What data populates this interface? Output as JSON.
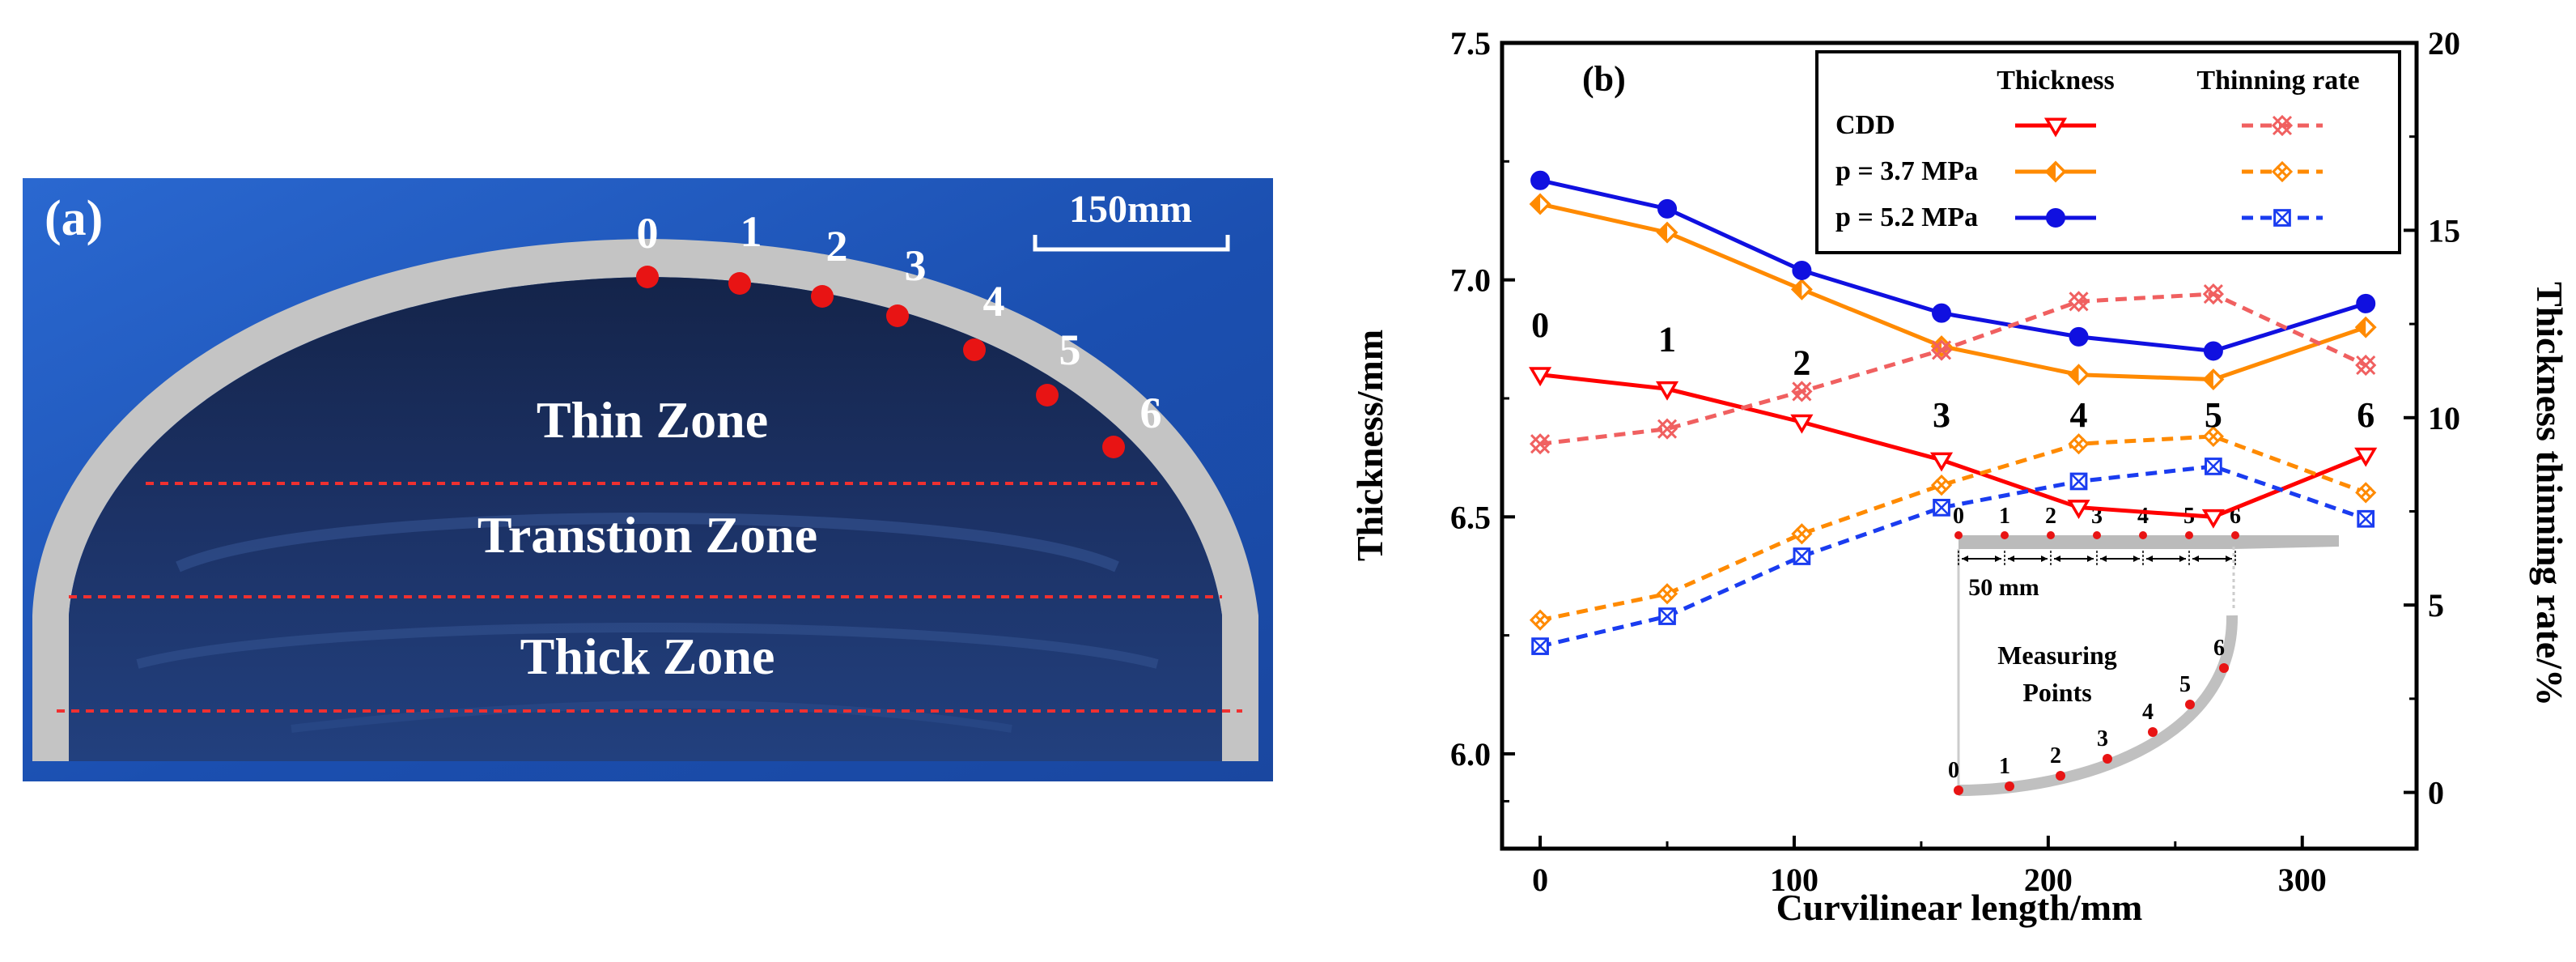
{
  "panel_a": {
    "label": "(a)",
    "scale_bar": "150mm",
    "zones": [
      "Thin Zone",
      "Transtion Zone",
      "Thick Zone"
    ],
    "point_labels": [
      "0",
      "1",
      "2",
      "3",
      "4",
      "5",
      "6"
    ],
    "colors": {
      "background": "#1f55b8",
      "shell": "#c7c7c7",
      "marker": "#e81414",
      "dash": "#f03030"
    }
  },
  "chart_data": {
    "type": "line",
    "panel_label": "(b)",
    "xlabel": "Curvilinear length/mm",
    "ylabel": "Thickness/mm",
    "y2label": "Thickness thinning rate/%",
    "xlim": [
      -15,
      345
    ],
    "ylim": [
      5.8,
      7.5
    ],
    "y2lim": [
      -1.5,
      20
    ],
    "xticks": [
      "0",
      "100",
      "200",
      "300"
    ],
    "yticks": [
      "6.0",
      "6.5",
      "7.0",
      "7.5"
    ],
    "y2ticks": [
      "0",
      "5",
      "10",
      "15",
      "20"
    ],
    "x": [
      0,
      50,
      103,
      158,
      212,
      265,
      325
    ],
    "legend": {
      "header_thickness": "Thickness",
      "header_thinning": "Thinning rate",
      "rows": [
        "CDD",
        "p = 3.7 MPa",
        "p = 5.2 MPa"
      ]
    },
    "series": [
      {
        "name": "CDD",
        "kind": "Thickness",
        "axis": "left",
        "color": "#ff0000",
        "marker": "triangle-down",
        "values": [
          6.8,
          6.77,
          6.7,
          6.62,
          6.52,
          6.5,
          6.63
        ]
      },
      {
        "name": "p = 3.7 MPa",
        "kind": "Thickness",
        "axis": "left",
        "color": "#ff8a00",
        "marker": "diamond-half",
        "values": [
          7.16,
          7.1,
          6.98,
          6.86,
          6.8,
          6.79,
          6.9
        ]
      },
      {
        "name": "p = 5.2 MPa",
        "kind": "Thickness",
        "axis": "left",
        "color": "#1010e0",
        "marker": "circle",
        "values": [
          7.21,
          7.15,
          7.02,
          6.93,
          6.88,
          6.85,
          6.95
        ]
      },
      {
        "name": "CDD",
        "kind": "Thinning rate",
        "axis": "right",
        "color": "#f06060",
        "marker": "x-circle",
        "values": [
          9.3,
          9.7,
          10.7,
          11.8,
          13.1,
          13.3,
          11.4
        ]
      },
      {
        "name": "p = 3.7 MPa",
        "kind": "Thinning rate",
        "axis": "right",
        "color": "#ff8a00",
        "marker": "x-diamond",
        "values": [
          4.6,
          5.3,
          6.9,
          8.2,
          9.3,
          9.5,
          8.0
        ]
      },
      {
        "name": "p = 5.2 MPa",
        "kind": "Thinning rate",
        "axis": "right",
        "color": "#1a3cf0",
        "marker": "x-square",
        "values": [
          3.9,
          4.7,
          6.3,
          7.6,
          8.3,
          8.7,
          7.3
        ]
      }
    ],
    "point_annotations": [
      {
        "text": "0",
        "x": 0,
        "y": 6.88
      },
      {
        "text": "1",
        "x": 50,
        "y": 6.85
      },
      {
        "text": "2",
        "x": 103,
        "y": 6.8
      },
      {
        "text": "3",
        "x": 158,
        "y": 6.69
      },
      {
        "text": "4",
        "x": 212,
        "y": 6.69
      },
      {
        "text": "5",
        "x": 265,
        "y": 6.69
      },
      {
        "text": "6",
        "x": 325,
        "y": 6.69
      }
    ],
    "inset": {
      "top_labels": [
        "0",
        "1",
        "2",
        "3",
        "4",
        "5",
        "6"
      ],
      "spacing_label": "50 mm",
      "caption": "Measuring Points",
      "arc_labels": [
        "0",
        "1",
        "2",
        "3",
        "4",
        "5",
        "6"
      ]
    }
  }
}
